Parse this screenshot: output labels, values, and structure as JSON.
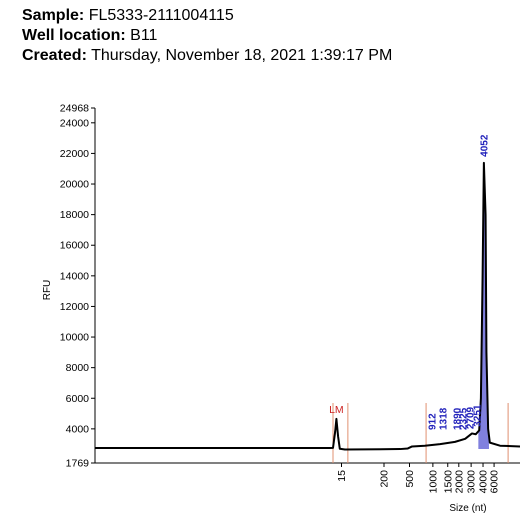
{
  "header": {
    "sample_label": "Sample:",
    "sample": "FL5333-2111004115",
    "well_label": "Well location:",
    "well": "B11",
    "created_label": "Created:",
    "created": "Thursday, November 18, 2021 1:39:17 PM"
  },
  "chart_data": {
    "type": "line",
    "ylabel": "RFU",
    "xlabel": "Size (nt)",
    "ylim": [
      1769,
      24968
    ],
    "yticks": [
      1769,
      4000,
      6000,
      8000,
      10000,
      12000,
      14000,
      16000,
      18000,
      20000,
      22000,
      24000,
      24968
    ],
    "xlim": [
      0,
      100
    ],
    "xticks": [
      {
        "value": 58,
        "label": "15"
      },
      {
        "value": 68,
        "label": "200"
      },
      {
        "value": 74,
        "label": "500"
      },
      {
        "value": 79.5,
        "label": "1000"
      },
      {
        "value": 83,
        "label": "1500"
      },
      {
        "value": 85.6,
        "label": "2000"
      },
      {
        "value": 88.5,
        "label": "3000"
      },
      {
        "value": 91.3,
        "label": "4000"
      },
      {
        "value": 93.9,
        "label": "6000"
      }
    ],
    "x": [
      0,
      55.3,
      56,
      56.5,
      56.8,
      57.2,
      57.6,
      58.8,
      71.8,
      73.6,
      74.6,
      77.6,
      81.2,
      84.7,
      87.1,
      88.7,
      89.6,
      90.4,
      90.8,
      91.2,
      91.5,
      91.9,
      92.1,
      92.5,
      92.9,
      95.3,
      100
    ],
    "series": [
      {
        "name": "RFU",
        "color": "#000000",
        "values": [
          2750,
          2750,
          2760,
          3800,
          4650,
          3500,
          2700,
          2650,
          2680,
          2720,
          2850,
          2900,
          3000,
          3150,
          3350,
          3700,
          3650,
          3900,
          6000,
          14000,
          21385,
          18000,
          9000,
          4000,
          3100,
          2900,
          2850
        ]
      }
    ],
    "highlight_x": [
      90.2,
      92.7
    ],
    "highlight_color": "#6a6ad8",
    "peak_color": "#2222bb",
    "peaks": [
      {
        "label": "912",
        "x": 79.3
      },
      {
        "label": "1318",
        "x": 81.9
      },
      {
        "label": "1890",
        "x": 85.2
      },
      {
        "label": "2325",
        "x": 86.6
      },
      {
        "label": "2709",
        "x": 88.2
      },
      {
        "label": "3251",
        "x": 89.9
      },
      {
        "label": "4052",
        "x": 91.5
      }
    ],
    "marker": {
      "label": "LM",
      "x": 56.8,
      "color": "#cc2222"
    },
    "region_lines": [
      56.0,
      59.5,
      77.9,
      97.2
    ],
    "region_color": "#e09070"
  }
}
